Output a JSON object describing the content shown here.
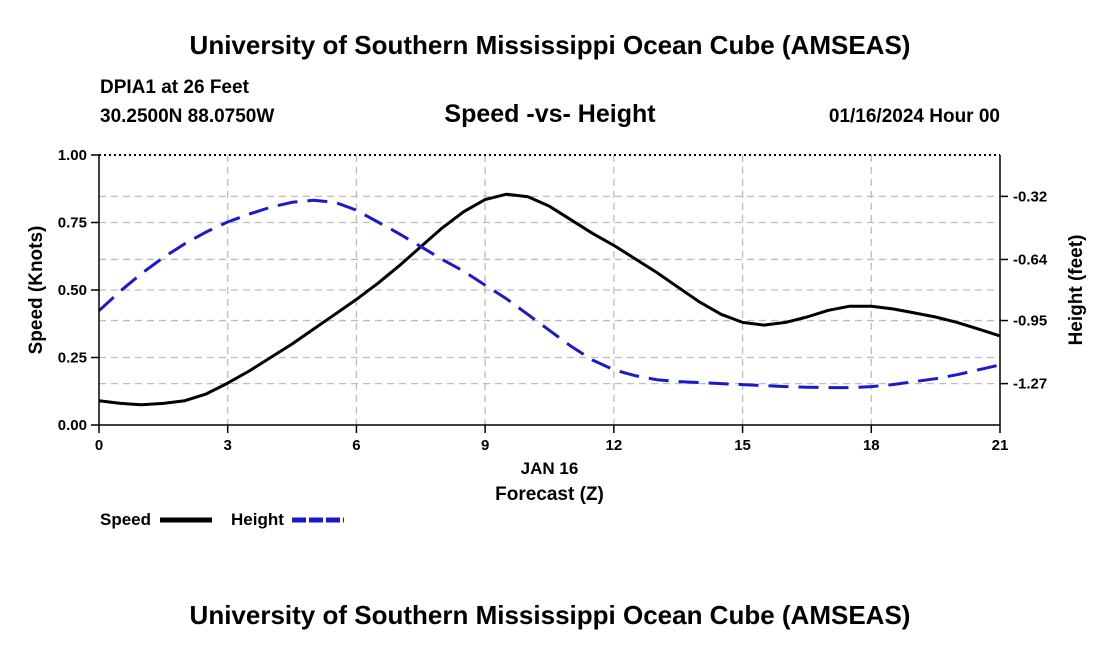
{
  "header": {
    "title": "University of Southern Mississippi Ocean Cube (AMSEAS)",
    "station": "DPIA1 at 26 Feet",
    "coords": "30.2500N  88.0750W",
    "chart_title": "Speed -vs- Height",
    "datetime": "01/16/2024 Hour 00"
  },
  "footer": {
    "title": "University of Southern Mississippi Ocean Cube (AMSEAS)"
  },
  "chart_data": {
    "type": "line",
    "title": "Speed -vs- Height",
    "xlabel": "Forecast (Z)",
    "xlabel_date": "JAN 16",
    "ylabel_left": "Speed (Knots)",
    "ylabel_right": "Height (feet)",
    "xlim": [
      0,
      21
    ],
    "ylim_left": [
      0,
      1.0
    ],
    "ylim_right": [
      -1.48,
      -0.11
    ],
    "x_ticks": [
      0,
      3,
      6,
      9,
      12,
      15,
      18,
      21
    ],
    "x_tick_labels": [
      "0",
      "3",
      "6",
      "9",
      "12",
      "15",
      "18",
      "21"
    ],
    "left_ticks": [
      0,
      0.25,
      0.5,
      0.75,
      1.0
    ],
    "left_tick_labels": [
      "0.00",
      "0.25",
      "0.50",
      "0.75",
      "1.00"
    ],
    "right_ticks": [
      -1.27,
      -0.95,
      -0.64,
      -0.32
    ],
    "right_tick_labels": [
      "-1.27",
      "-0.95",
      "-0.64",
      "-0.32"
    ],
    "grid": true,
    "legend_position": "bottom-left",
    "series": [
      {
        "name": "Speed",
        "axis": "left",
        "style": "solid",
        "color": "#000000",
        "x": [
          0,
          0.5,
          1,
          1.5,
          2,
          2.5,
          3,
          3.5,
          4,
          4.5,
          5,
          5.5,
          6,
          6.5,
          7,
          7.5,
          8,
          8.5,
          9,
          9.5,
          10,
          10.5,
          11,
          11.5,
          12,
          12.5,
          13,
          13.5,
          14,
          14.5,
          15,
          15.5,
          16,
          16.5,
          17,
          17.5,
          18,
          18.5,
          19,
          19.5,
          20,
          20.5,
          21
        ],
        "values": [
          0.09,
          0.08,
          0.075,
          0.08,
          0.09,
          0.115,
          0.155,
          0.2,
          0.25,
          0.3,
          0.355,
          0.41,
          0.465,
          0.525,
          0.59,
          0.66,
          0.73,
          0.79,
          0.835,
          0.855,
          0.845,
          0.81,
          0.76,
          0.71,
          0.665,
          0.615,
          0.565,
          0.51,
          0.455,
          0.41,
          0.38,
          0.37,
          0.38,
          0.4,
          0.425,
          0.44,
          0.44,
          0.43,
          0.415,
          0.4,
          0.38,
          0.355,
          0.33
        ]
      },
      {
        "name": "Height",
        "axis": "right",
        "style": "dashed",
        "color": "#1a1acc",
        "x": [
          0,
          0.5,
          1,
          1.5,
          2,
          2.5,
          3,
          3.5,
          4,
          4.5,
          5,
          5.5,
          6,
          6.5,
          7,
          7.5,
          8,
          8.5,
          9,
          9.5,
          10,
          10.5,
          11,
          11.5,
          12,
          12.5,
          13,
          13.5,
          14,
          14.5,
          15,
          15.5,
          16,
          16.5,
          17,
          17.5,
          18,
          18.5,
          19,
          19.5,
          20,
          20.5,
          21
        ],
        "values": [
          -0.9,
          -0.8,
          -0.71,
          -0.63,
          -0.56,
          -0.5,
          -0.45,
          -0.41,
          -0.375,
          -0.35,
          -0.34,
          -0.35,
          -0.39,
          -0.45,
          -0.51,
          -0.575,
          -0.64,
          -0.7,
          -0.77,
          -0.84,
          -0.92,
          -1.0,
          -1.08,
          -1.15,
          -1.2,
          -1.23,
          -1.25,
          -1.26,
          -1.265,
          -1.27,
          -1.275,
          -1.28,
          -1.285,
          -1.288,
          -1.29,
          -1.29,
          -1.285,
          -1.275,
          -1.26,
          -1.245,
          -1.225,
          -1.2,
          -1.175
        ]
      }
    ]
  }
}
